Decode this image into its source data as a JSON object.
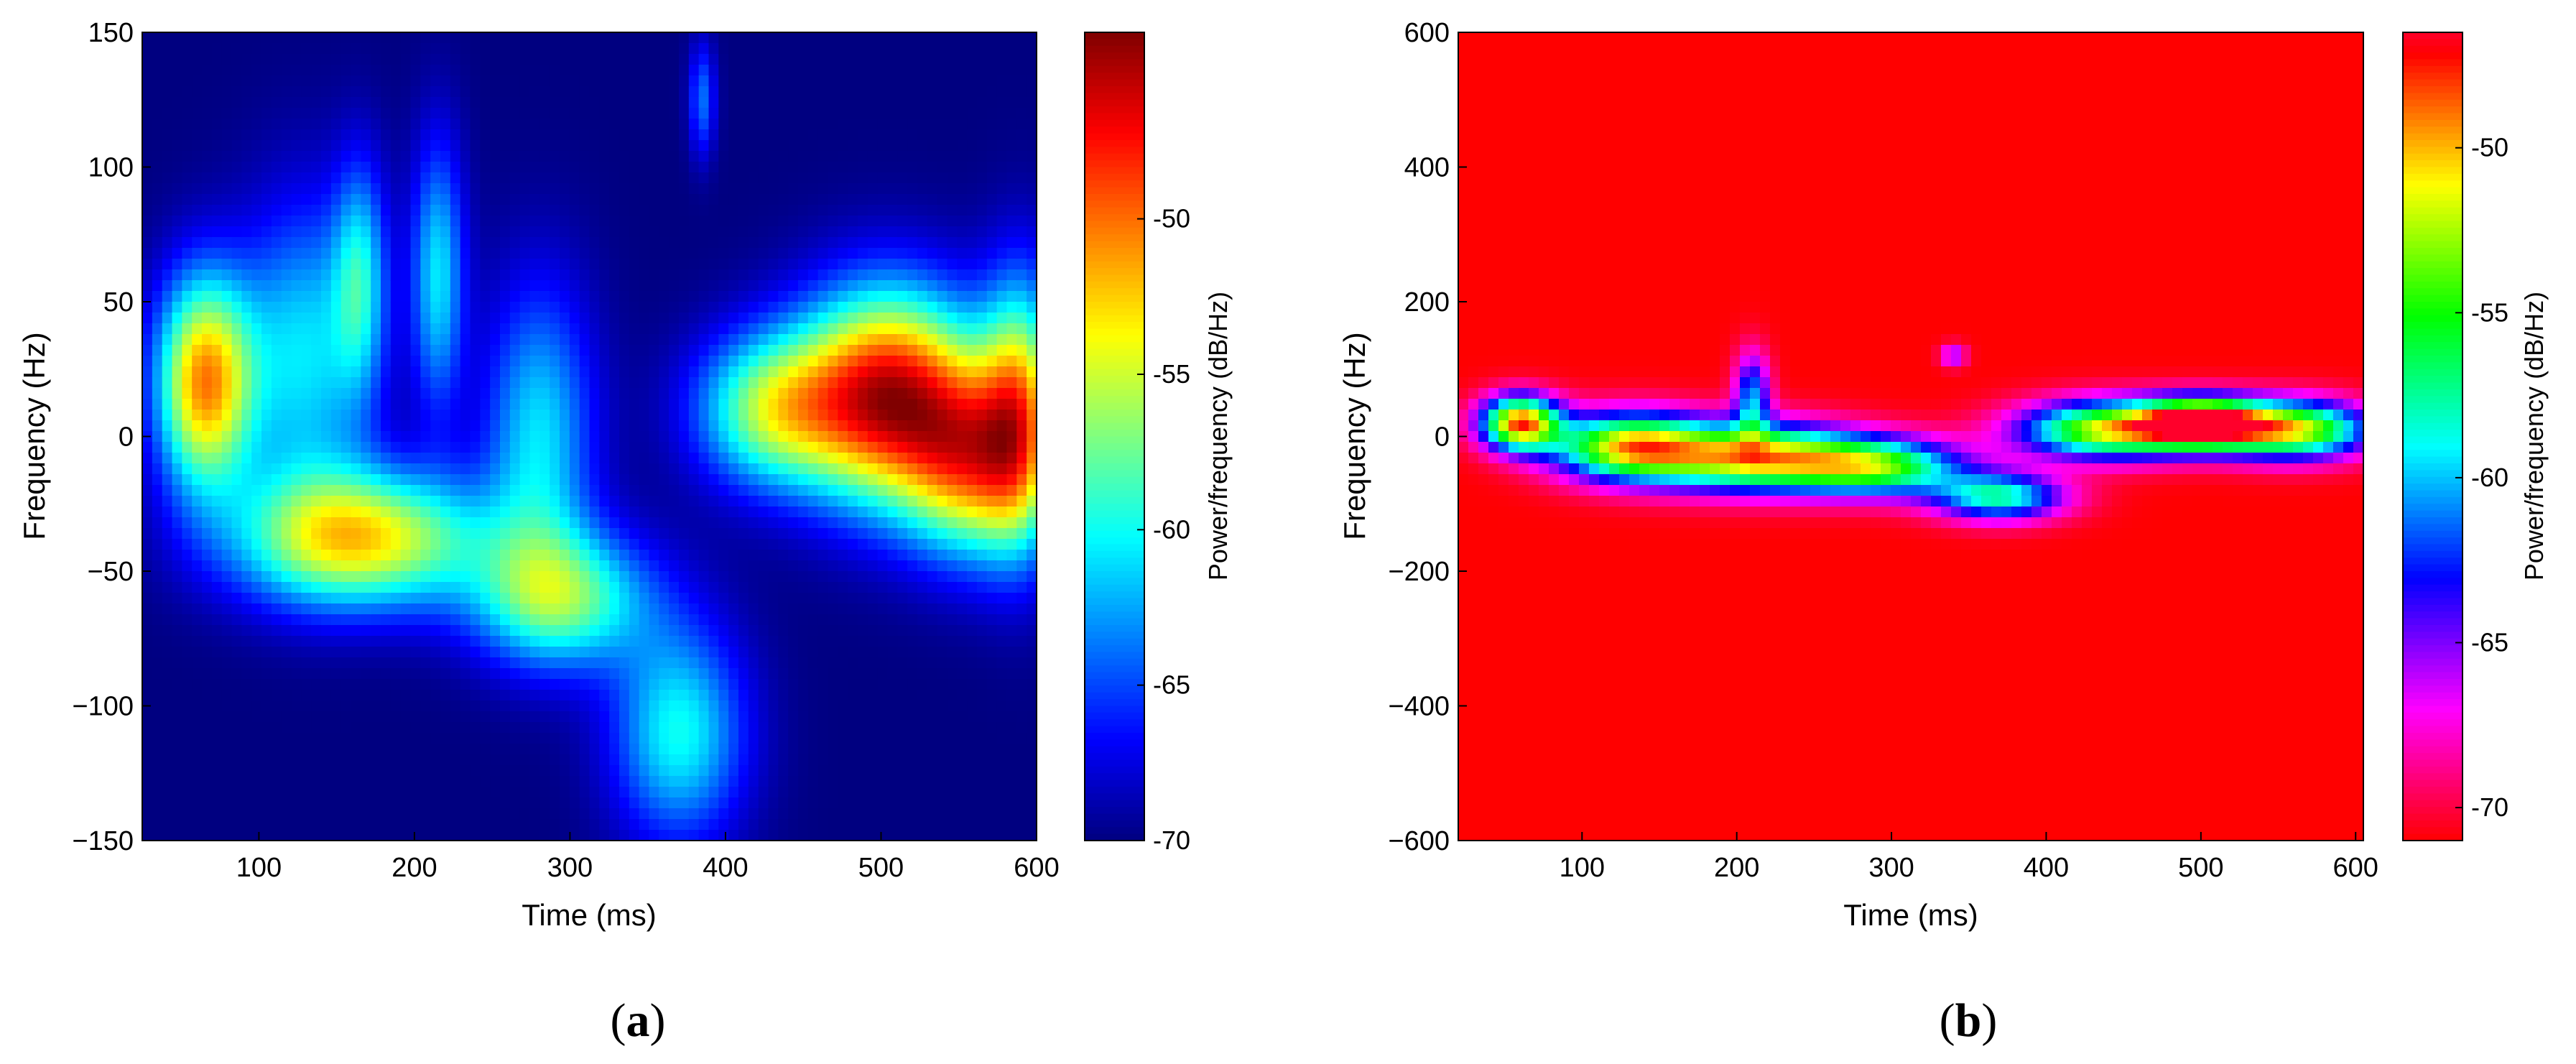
{
  "chart_data": [
    {
      "type": "heatmap",
      "caption": {
        "open": "(",
        "letter": "a",
        "close": ")"
      },
      "xlabel": "Time (ms)",
      "ylabel": "Frequency (Hz)",
      "xlim": [
        25,
        600
      ],
      "ylim": [
        -150,
        150
      ],
      "xticks": [
        100,
        200,
        300,
        400,
        500,
        600
      ],
      "xtick_labels": [
        "100",
        "200",
        "300",
        "400",
        "500",
        "600"
      ],
      "yticks": [
        150,
        100,
        50,
        0,
        -50,
        -100,
        -150
      ],
      "ytick_labels": [
        "150",
        "100",
        "50",
        "0",
        "−50",
        "−100",
        "−150"
      ],
      "colorbar": {
        "label": "Power/frequency (dB/Hz)",
        "range": [
          -70,
          -44
        ],
        "ticks": [
          -50,
          -55,
          -60,
          -65,
          -70
        ],
        "tick_labels": [
          "-50",
          "-55",
          "-60",
          "-65",
          "-70"
        ],
        "colormap": "jet"
      },
      "background_db": -70,
      "blobs": [
        {
          "t": 65,
          "f": 20,
          "st": 22,
          "sf": 28,
          "db": 19
        },
        {
          "t": 165,
          "f": -38,
          "st": 55,
          "sf": 18,
          "db": 17
        },
        {
          "t": 295,
          "f": -60,
          "st": 40,
          "sf": 18,
          "db": 12
        },
        {
          "t": 370,
          "f": -110,
          "st": 30,
          "sf": 28,
          "db": 10
        },
        {
          "t": 505,
          "f": 15,
          "st": 40,
          "sf": 28,
          "db": 23
        },
        {
          "t": 560,
          "f": -10,
          "st": 30,
          "sf": 25,
          "db": 15
        },
        {
          "t": 430,
          "f": 10,
          "st": 35,
          "sf": 20,
          "db": 13
        },
        {
          "t": 590,
          "f": 10,
          "st": 18,
          "sf": 35,
          "db": 14
        },
        {
          "t": 215,
          "f": 60,
          "st": 12,
          "sf": 35,
          "db": 9
        },
        {
          "t": 165,
          "f": 60,
          "st": 12,
          "sf": 30,
          "db": 8
        },
        {
          "t": 130,
          "f": 30,
          "st": 30,
          "sf": 40,
          "db": 9
        },
        {
          "t": 280,
          "f": 0,
          "st": 25,
          "sf": 40,
          "db": 9
        },
        {
          "t": 385,
          "f": 125,
          "st": 6,
          "sf": 15,
          "db": 6
        }
      ]
    },
    {
      "type": "heatmap",
      "caption": {
        "open": "(",
        "letter": "b",
        "close": ")"
      },
      "xlabel": "Time (ms)",
      "ylabel": "Frequency (Hz)",
      "xlim": [
        20,
        605
      ],
      "ylim": [
        -600,
        600
      ],
      "xticks": [
        100,
        200,
        300,
        400,
        500,
        600
      ],
      "xtick_labels": [
        "100",
        "200",
        "300",
        "400",
        "500",
        "600"
      ],
      "yticks": [
        600,
        400,
        200,
        0,
        -200,
        -400,
        -600
      ],
      "ytick_labels": [
        "600",
        "400",
        "200",
        "0",
        "−200",
        "−400",
        "−600"
      ],
      "colorbar": {
        "label": "Power/frequency (dB/Hz)",
        "range": [
          -71,
          -46.5
        ],
        "ticks": [
          -50,
          -55,
          -60,
          -65,
          -70
        ],
        "tick_labels": [
          "-50",
          "-55",
          "-60",
          "-65",
          "-70"
        ],
        "colormap": "hsv-reverse"
      },
      "background_db": -71,
      "blobs": [
        {
          "t": 60,
          "f": 20,
          "st": 18,
          "sf": 28,
          "db": 22
        },
        {
          "t": 130,
          "f": -15,
          "st": 35,
          "sf": 35,
          "db": 19
        },
        {
          "t": 210,
          "f": -30,
          "st": 45,
          "sf": 35,
          "db": 19
        },
        {
          "t": 290,
          "f": -45,
          "st": 40,
          "sf": 30,
          "db": 16
        },
        {
          "t": 370,
          "f": -90,
          "st": 30,
          "sf": 25,
          "db": 13
        },
        {
          "t": 440,
          "f": 10,
          "st": 40,
          "sf": 30,
          "db": 19
        },
        {
          "t": 500,
          "f": 20,
          "st": 28,
          "sf": 25,
          "db": 23
        },
        {
          "t": 560,
          "f": 10,
          "st": 35,
          "sf": 30,
          "db": 19
        },
        {
          "t": 210,
          "f": 60,
          "st": 8,
          "sf": 45,
          "db": 10
        },
        {
          "t": 340,
          "f": 120,
          "st": 6,
          "sf": 12,
          "db": 6
        }
      ]
    }
  ]
}
